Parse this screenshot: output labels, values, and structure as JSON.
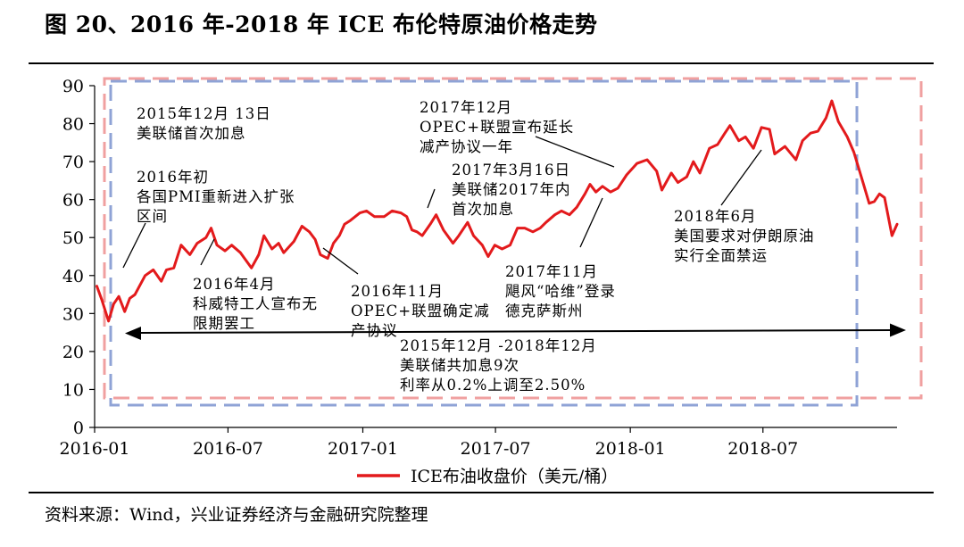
{
  "figure": {
    "title": "图 20、2016 年-2018 年 ICE 布伦特原油价格走势",
    "source": "资料来源：Wind，兴业证券经济与金融研究院整理"
  },
  "colors": {
    "line": "#e31a1c",
    "blue_box": "#8fa3d6",
    "pink_box": "#f0a0a0",
    "axis": "#000000"
  },
  "chart_data": {
    "type": "line",
    "ylim": [
      0,
      90
    ],
    "yticks": [
      0,
      10,
      20,
      30,
      40,
      50,
      60,
      70,
      80,
      90
    ],
    "x_start": "2016-01-01",
    "x_end": "2018-12-31",
    "xticks": [
      "2016-01",
      "2016-07",
      "2017-01",
      "2017-07",
      "2018-01",
      "2018-07"
    ],
    "legend": "ICE布油收盘价（美元/桶）",
    "legend_position": "bottom",
    "grid": false,
    "series": [
      {
        "name": "ICE布油收盘价（美元/桶）",
        "points": [
          [
            "2016-01-04",
            37.2
          ],
          [
            "2016-01-11",
            33.5
          ],
          [
            "2016-01-20",
            28.0
          ],
          [
            "2016-01-27",
            32.5
          ],
          [
            "2016-02-03",
            34.5
          ],
          [
            "2016-02-11",
            30.5
          ],
          [
            "2016-02-18",
            34.0
          ],
          [
            "2016-02-25",
            35.0
          ],
          [
            "2016-03-03",
            37.5
          ],
          [
            "2016-03-10",
            40.0
          ],
          [
            "2016-03-21",
            41.5
          ],
          [
            "2016-04-01",
            38.5
          ],
          [
            "2016-04-08",
            41.5
          ],
          [
            "2016-04-18",
            42.0
          ],
          [
            "2016-04-28",
            48.0
          ],
          [
            "2016-05-10",
            45.5
          ],
          [
            "2016-05-20",
            48.5
          ],
          [
            "2016-06-01",
            50.0
          ],
          [
            "2016-06-08",
            52.5
          ],
          [
            "2016-06-16",
            48.0
          ],
          [
            "2016-06-27",
            46.5
          ],
          [
            "2016-07-06",
            48.0
          ],
          [
            "2016-07-18",
            46.0
          ],
          [
            "2016-08-02",
            42.0
          ],
          [
            "2016-08-12",
            45.5
          ],
          [
            "2016-08-19",
            50.5
          ],
          [
            "2016-08-30",
            47.0
          ],
          [
            "2016-09-08",
            48.5
          ],
          [
            "2016-09-15",
            46.0
          ],
          [
            "2016-09-29",
            49.0
          ],
          [
            "2016-10-10",
            53.0
          ],
          [
            "2016-10-20",
            51.5
          ],
          [
            "2016-10-28",
            49.5
          ],
          [
            "2016-11-04",
            45.5
          ],
          [
            "2016-11-14",
            44.5
          ],
          [
            "2016-11-22",
            48.5
          ],
          [
            "2016-11-30",
            50.5
          ],
          [
            "2016-12-07",
            53.5
          ],
          [
            "2016-12-15",
            54.5
          ],
          [
            "2016-12-28",
            56.5
          ],
          [
            "2017-01-06",
            57.0
          ],
          [
            "2017-01-17",
            55.5
          ],
          [
            "2017-01-30",
            55.5
          ],
          [
            "2017-02-10",
            57.0
          ],
          [
            "2017-02-22",
            56.5
          ],
          [
            "2017-03-02",
            55.5
          ],
          [
            "2017-03-09",
            52.0
          ],
          [
            "2017-03-16",
            51.5
          ],
          [
            "2017-03-23",
            50.5
          ],
          [
            "2017-04-03",
            53.5
          ],
          [
            "2017-04-11",
            56.0
          ],
          [
            "2017-04-21",
            52.0
          ],
          [
            "2017-05-04",
            48.5
          ],
          [
            "2017-05-12",
            50.5
          ],
          [
            "2017-05-24",
            54.0
          ],
          [
            "2017-06-01",
            50.5
          ],
          [
            "2017-06-13",
            48.0
          ],
          [
            "2017-06-21",
            45.0
          ],
          [
            "2017-06-30",
            48.0
          ],
          [
            "2017-07-10",
            47.0
          ],
          [
            "2017-07-21",
            48.0
          ],
          [
            "2017-07-31",
            52.5
          ],
          [
            "2017-08-10",
            52.5
          ],
          [
            "2017-08-21",
            51.5
          ],
          [
            "2017-08-31",
            52.5
          ],
          [
            "2017-09-08",
            54.0
          ],
          [
            "2017-09-20",
            56.0
          ],
          [
            "2017-09-29",
            57.0
          ],
          [
            "2017-10-10",
            56.0
          ],
          [
            "2017-10-20",
            58.0
          ],
          [
            "2017-10-31",
            61.5
          ],
          [
            "2017-11-07",
            64.0
          ],
          [
            "2017-11-15",
            62.0
          ],
          [
            "2017-11-24",
            63.5
          ],
          [
            "2017-12-05",
            62.0
          ],
          [
            "2017-12-15",
            63.0
          ],
          [
            "2017-12-27",
            66.5
          ],
          [
            "2018-01-10",
            69.5
          ],
          [
            "2018-01-24",
            70.5
          ],
          [
            "2018-02-06",
            67.5
          ],
          [
            "2018-02-13",
            62.5
          ],
          [
            "2018-02-26",
            67.0
          ],
          [
            "2018-03-07",
            64.5
          ],
          [
            "2018-03-19",
            66.0
          ],
          [
            "2018-03-28",
            70.0
          ],
          [
            "2018-04-06",
            67.0
          ],
          [
            "2018-04-19",
            73.5
          ],
          [
            "2018-04-30",
            74.5
          ],
          [
            "2018-05-10",
            77.5
          ],
          [
            "2018-05-17",
            79.5
          ],
          [
            "2018-05-29",
            75.5
          ],
          [
            "2018-06-07",
            76.5
          ],
          [
            "2018-06-18",
            73.5
          ],
          [
            "2018-06-29",
            79.0
          ],
          [
            "2018-07-10",
            78.5
          ],
          [
            "2018-07-17",
            72.0
          ],
          [
            "2018-07-31",
            74.0
          ],
          [
            "2018-08-15",
            70.5
          ],
          [
            "2018-08-24",
            75.5
          ],
          [
            "2018-09-04",
            77.5
          ],
          [
            "2018-09-14",
            78.0
          ],
          [
            "2018-09-25",
            81.5
          ],
          [
            "2018-10-03",
            86.0
          ],
          [
            "2018-10-12",
            80.5
          ],
          [
            "2018-10-24",
            76.5
          ],
          [
            "2018-11-02",
            72.5
          ],
          [
            "2018-11-13",
            65.5
          ],
          [
            "2018-11-23",
            59.0
          ],
          [
            "2018-11-30",
            59.5
          ],
          [
            "2018-12-07",
            61.5
          ],
          [
            "2018-12-14",
            60.5
          ],
          [
            "2018-12-24",
            50.5
          ],
          [
            "2018-12-31",
            53.5
          ]
        ]
      }
    ],
    "annotations": [
      {
        "text": [
          "2015年12月 13日",
          "美联储首次加息"
        ]
      },
      {
        "text": [
          "2016年初",
          "各国PMI重新进入扩张",
          "区间"
        ]
      },
      {
        "text": [
          "2016年4月",
          "科威特工人宣布无",
          "限期罢工"
        ]
      },
      {
        "text": [
          "2016年11月",
          "OPEC+联盟确定减",
          "产协议"
        ]
      },
      {
        "text": [
          "2017年12月",
          "OPEC+联盟宣布延长",
          "减产协议一年"
        ]
      },
      {
        "text": [
          "2017年3月16日",
          "美联储2017年内",
          "首次加息"
        ]
      },
      {
        "text": [
          "2017年11月",
          "飓风“哈维”登录",
          "德克萨斯州"
        ]
      },
      {
        "text": [
          "2018年6月",
          "美国要求对伊朗原油",
          "实行全面禁运"
        ]
      },
      {
        "text": [
          "2015年12月 -2018年12月",
          "美联储共加息9次",
          "利率从0.2%上调至2.50%"
        ]
      }
    ]
  }
}
